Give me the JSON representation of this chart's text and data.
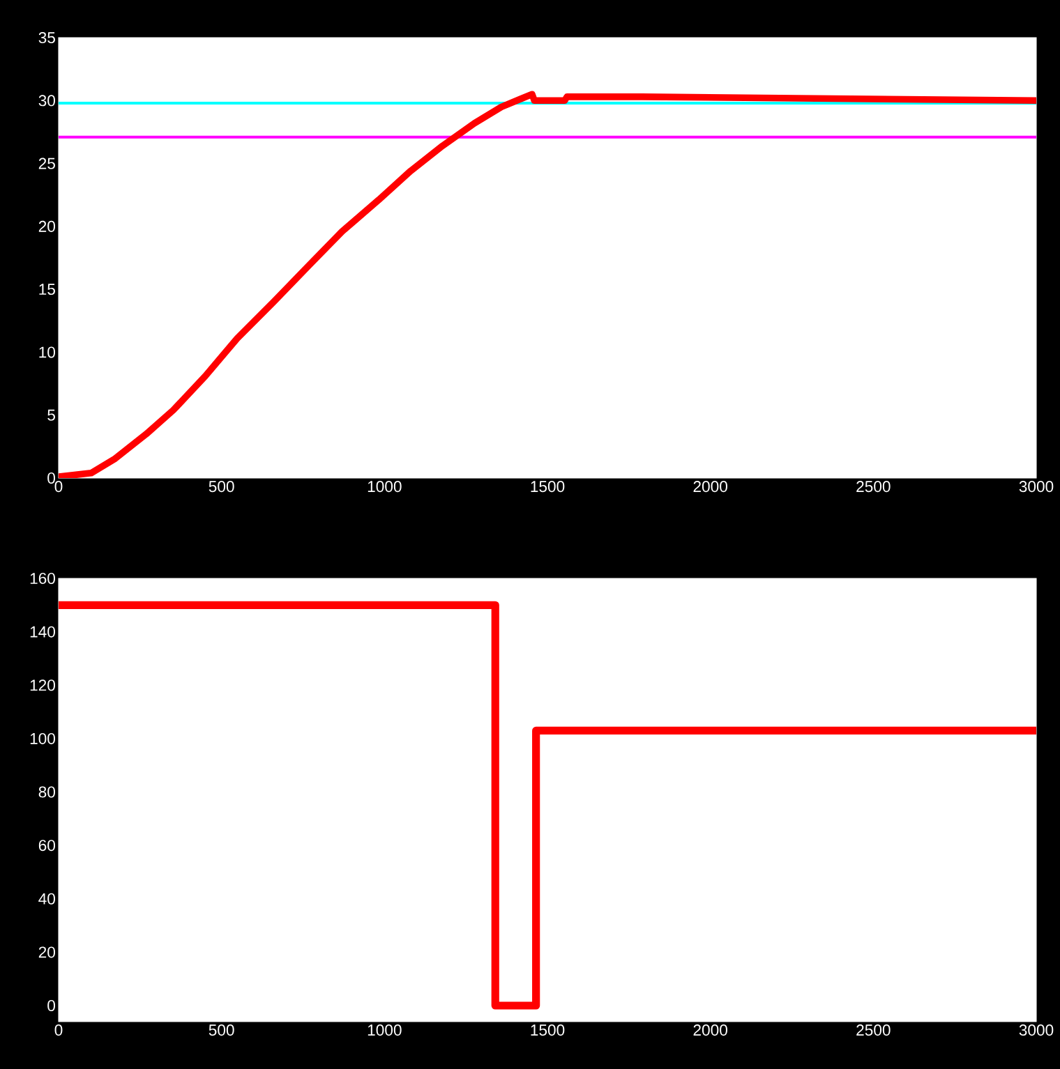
{
  "chart_data": [
    {
      "type": "line",
      "xlim": [
        0,
        3000
      ],
      "ylim": [
        0,
        35
      ],
      "xticks": [
        0,
        500,
        1000,
        1500,
        2000,
        2500,
        3000
      ],
      "yticks": [
        0,
        5,
        10,
        15,
        20,
        25,
        30,
        35
      ],
      "series": [
        {
          "color": "#ff0000",
          "x": [
            0,
            100,
            171,
            269,
            352,
            450,
            548,
            660,
            772,
            870,
            982,
            1080,
            1178,
            1276,
            1359,
            1415,
            1453,
            1460,
            1553,
            1560,
            1790,
            3000
          ],
          "values": [
            0.1,
            0.4,
            1.5,
            3.5,
            5.4,
            8.1,
            11.1,
            14.0,
            17.0,
            19.6,
            22.1,
            24.4,
            26.4,
            28.2,
            29.5,
            30.1,
            30.5,
            30.0,
            30.0,
            30.3,
            30.3,
            30.0
          ]
        }
      ],
      "ref_lines": [
        {
          "axis": "y",
          "value": 29.8,
          "color": "#00ffff"
        },
        {
          "axis": "y",
          "value": 27.1,
          "color": "#ff00ff"
        }
      ]
    },
    {
      "type": "step",
      "xlim": [
        0,
        3000
      ],
      "ylim": [
        -6,
        160
      ],
      "xticks": [
        0,
        500,
        1000,
        1500,
        2000,
        2500,
        3000
      ],
      "yticks": [
        0,
        20,
        40,
        60,
        80,
        100,
        120,
        140,
        160
      ],
      "series": [
        {
          "color": "#ff0000",
          "x": [
            0,
            1340,
            1465,
            3000
          ],
          "values": [
            150,
            0,
            103,
            103
          ]
        }
      ]
    }
  ]
}
